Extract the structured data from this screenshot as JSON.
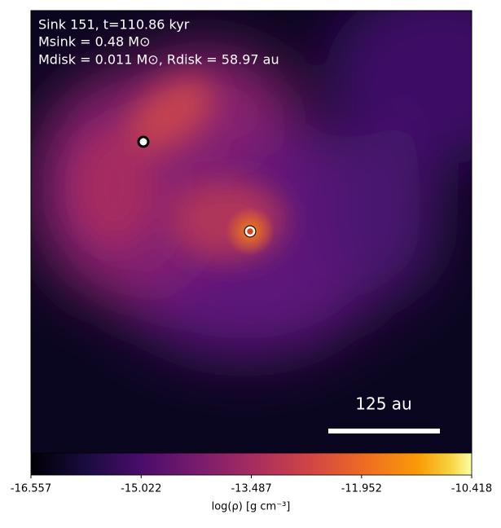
{
  "chart_data": {
    "type": "heatmap",
    "title": "Sink 151, t=110.86 kyr",
    "annotations": [
      "Msink = 0.48 M⊙",
      "Mdisk = 0.011 M⊙, Rdisk = 58.97 au"
    ],
    "scale_bar_label": "125 au",
    "colorbar": {
      "label": "log(ρ) [g cm⁻³]",
      "lim": [
        -16.557,
        -10.418
      ],
      "ticks": [
        -16.557,
        -15.022,
        -13.487,
        -11.952,
        -10.418
      ]
    }
  }
}
